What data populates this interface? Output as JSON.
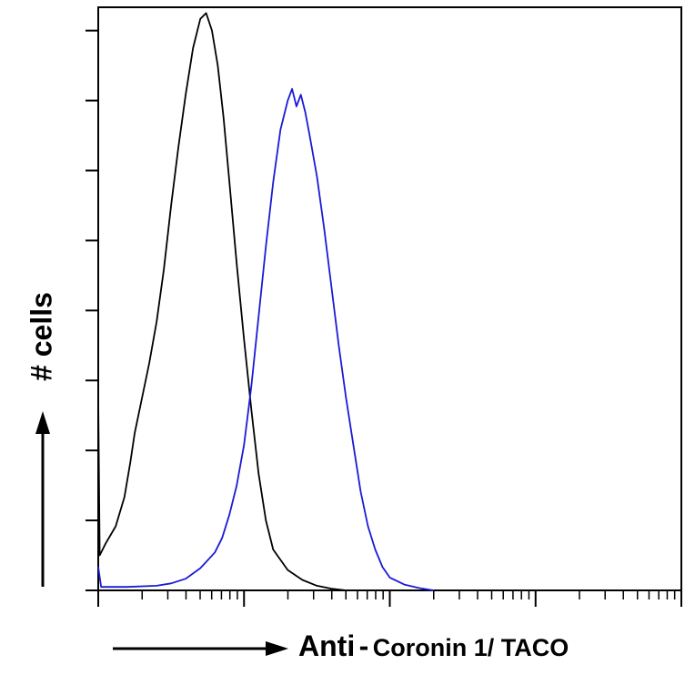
{
  "chart_data": {
    "type": "line",
    "title": "",
    "xlabel": {
      "prefix": "Anti",
      "dash": "-",
      "target": "Coronin 1/ TACO"
    },
    "ylabel": "# cells",
    "x_scale": "log",
    "x_range_decades": [
      0,
      4
    ],
    "x_major_decades": [
      0,
      1,
      2,
      3,
      4
    ],
    "ylim": [
      0,
      100
    ],
    "y_tick_values": [
      0,
      12,
      24,
      36,
      48,
      60,
      72,
      84,
      96
    ],
    "grid": false,
    "legend": "none",
    "series": [
      {
        "color": "#000000",
        "points": [
          [
            0,
            33
          ],
          [
            0.01,
            6
          ],
          [
            0.05,
            8
          ],
          [
            0.12,
            11
          ],
          [
            0.18,
            16
          ],
          [
            0.22,
            22
          ],
          [
            0.25,
            27
          ],
          [
            0.3,
            33
          ],
          [
            0.35,
            39
          ],
          [
            0.4,
            46
          ],
          [
            0.45,
            55
          ],
          [
            0.5,
            66
          ],
          [
            0.55,
            76
          ],
          [
            0.6,
            85
          ],
          [
            0.65,
            93
          ],
          [
            0.7,
            98
          ],
          [
            0.74,
            99
          ],
          [
            0.78,
            96
          ],
          [
            0.82,
            90
          ],
          [
            0.86,
            81
          ],
          [
            0.9,
            70
          ],
          [
            0.95,
            56
          ],
          [
            1.0,
            43
          ],
          [
            1.05,
            31
          ],
          [
            1.1,
            20
          ],
          [
            1.15,
            12
          ],
          [
            1.2,
            7
          ],
          [
            1.3,
            3.5
          ],
          [
            1.4,
            1.8
          ],
          [
            1.5,
            0.8
          ],
          [
            1.6,
            0.3
          ],
          [
            1.7,
            0
          ]
        ]
      },
      {
        "color": "#1a1ad6",
        "points": [
          [
            0,
            4
          ],
          [
            0.02,
            0.6
          ],
          [
            0.2,
            0.6
          ],
          [
            0.4,
            0.8
          ],
          [
            0.5,
            1.2
          ],
          [
            0.6,
            2
          ],
          [
            0.7,
            3.8
          ],
          [
            0.8,
            6.5
          ],
          [
            0.85,
            9
          ],
          [
            0.9,
            13
          ],
          [
            0.95,
            18
          ],
          [
            1.0,
            25
          ],
          [
            1.05,
            35
          ],
          [
            1.1,
            47
          ],
          [
            1.15,
            59
          ],
          [
            1.2,
            70
          ],
          [
            1.25,
            79
          ],
          [
            1.3,
            84
          ],
          [
            1.33,
            86
          ],
          [
            1.36,
            83
          ],
          [
            1.39,
            85
          ],
          [
            1.42,
            82
          ],
          [
            1.45,
            78
          ],
          [
            1.5,
            71
          ],
          [
            1.55,
            62
          ],
          [
            1.6,
            52
          ],
          [
            1.65,
            42
          ],
          [
            1.7,
            33
          ],
          [
            1.75,
            25
          ],
          [
            1.8,
            17
          ],
          [
            1.85,
            11
          ],
          [
            1.9,
            7
          ],
          [
            1.95,
            4
          ],
          [
            2.0,
            2.2
          ],
          [
            2.1,
            1
          ],
          [
            2.2,
            0.4
          ],
          [
            2.3,
            0
          ]
        ]
      }
    ]
  }
}
